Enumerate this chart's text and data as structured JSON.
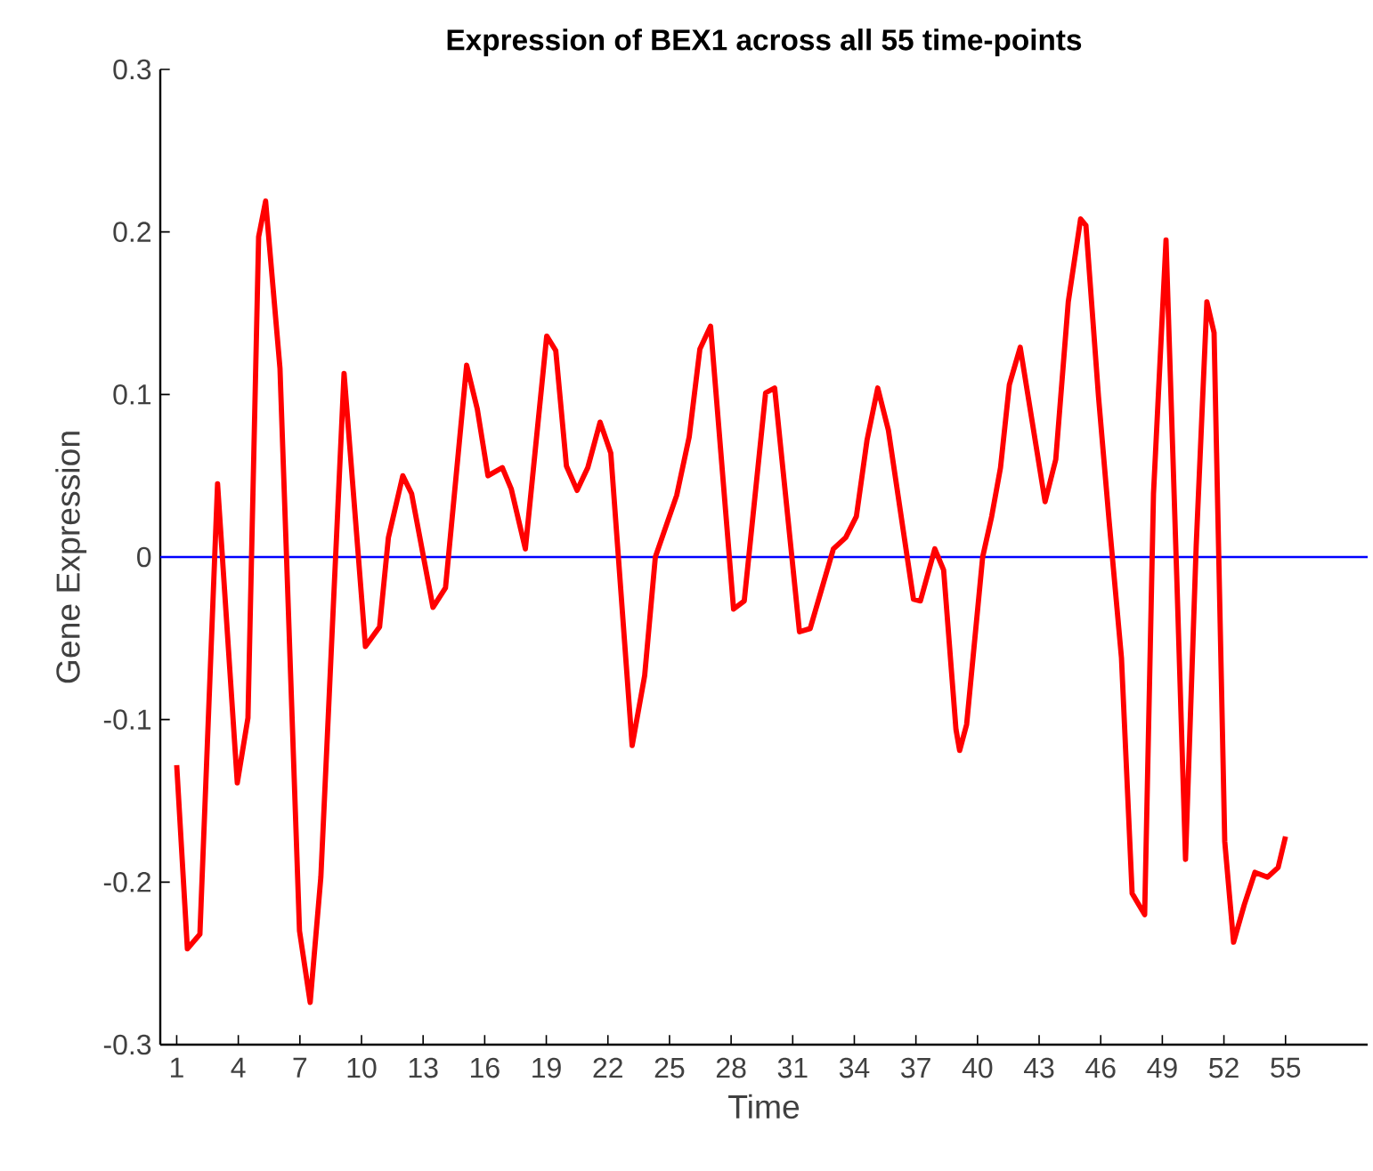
{
  "chart_data": {
    "type": "line",
    "title": "Expression of BEX1 across all 55  time-points",
    "xlabel": "Time",
    "ylabel": "Gene Expression",
    "xlim": [
      0.2,
      59
    ],
    "ylim": [
      -0.3,
      0.3
    ],
    "xticks": [
      1,
      4,
      7,
      10,
      13,
      16,
      19,
      22,
      25,
      28,
      31,
      34,
      37,
      40,
      43,
      46,
      49,
      52,
      55
    ],
    "yticks": [
      -0.3,
      -0.2,
      -0.1,
      0,
      0.1,
      0.2,
      0.3
    ],
    "grid": false,
    "marker": "none",
    "line_style": "solid",
    "series": [
      {
        "color": "#ff0000",
        "x": [
          1.0,
          1.52,
          2.13,
          2.99,
          3.95,
          4.47,
          4.99,
          5.33,
          6.03,
          6.98,
          7.5,
          8.02,
          9.15,
          10.19,
          10.88,
          11.31,
          12.01,
          12.44,
          13.48,
          14.09,
          15.12,
          15.64,
          16.16,
          16.86,
          17.29,
          17.98,
          19.02,
          19.46,
          19.98,
          20.5,
          21.02,
          21.62,
          22.14,
          23.18,
          23.79,
          24.31,
          25.35,
          25.96,
          26.48,
          27.0,
          28.12,
          28.64,
          29.68,
          30.12,
          31.33,
          31.85,
          32.98,
          33.58,
          34.1,
          34.62,
          35.14,
          35.66,
          36.88,
          37.22,
          37.92,
          38.35,
          38.95,
          39.13,
          39.47,
          40.25,
          40.69,
          41.12,
          41.55,
          42.08,
          43.29,
          43.81,
          44.42,
          45.02,
          45.28,
          45.89,
          46.41,
          47.01,
          47.53,
          48.14,
          48.57,
          49.18,
          49.7,
          50.13,
          50.65,
          51.17,
          51.52,
          52.04,
          52.47,
          52.99,
          53.51,
          54.12,
          54.64,
          55.0
        ],
        "values": [
          -0.128,
          -0.241,
          -0.232,
          0.045,
          -0.139,
          -0.099,
          0.197,
          0.219,
          0.116,
          -0.23,
          -0.274,
          -0.197,
          0.113,
          -0.055,
          -0.043,
          0.012,
          0.05,
          0.039,
          -0.031,
          -0.019,
          0.118,
          0.091,
          0.05,
          0.055,
          0.042,
          0.005,
          0.136,
          0.127,
          0.056,
          0.041,
          0.055,
          0.083,
          0.064,
          -0.116,
          -0.073,
          0.0,
          0.038,
          0.074,
          0.128,
          0.142,
          -0.032,
          -0.027,
          0.101,
          0.104,
          -0.046,
          -0.044,
          0.005,
          0.012,
          0.025,
          0.072,
          0.104,
          0.078,
          -0.026,
          -0.027,
          0.005,
          -0.008,
          -0.106,
          -0.119,
          -0.103,
          0.0,
          0.025,
          0.055,
          0.106,
          0.129,
          0.034,
          0.06,
          0.157,
          0.208,
          0.204,
          0.099,
          0.022,
          -0.062,
          -0.207,
          -0.22,
          0.039,
          0.195,
          -0.011,
          -0.186,
          0.007,
          0.157,
          0.138,
          -0.175,
          -0.237,
          -0.214,
          -0.194,
          -0.197,
          -0.191,
          -0.172
        ]
      }
    ],
    "ref_lines": [
      {
        "axis": "y",
        "value": 0,
        "color": "#0000ff"
      }
    ]
  }
}
